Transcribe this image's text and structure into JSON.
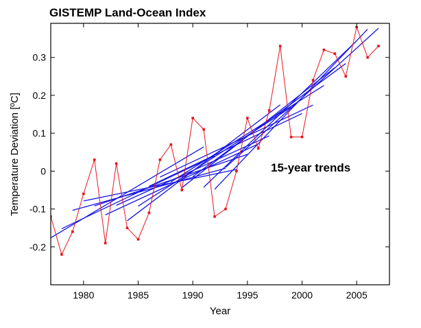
{
  "chart_data": {
    "type": "line",
    "title": "GISTEMP Land-Ocean Index",
    "xlabel": "Year",
    "ylabel": "Temperature Deviation [ºC]",
    "xlim": [
      1977,
      2008
    ],
    "ylim": [
      -0.3,
      0.39
    ],
    "xticks": [
      1980,
      1985,
      1990,
      1995,
      2000,
      2005
    ],
    "yticks": [
      -0.2,
      -0.1,
      0,
      0.1,
      0.2,
      0.3
    ],
    "grid": false,
    "annotation": "15-year trends",
    "colors": {
      "series": "#e8141c",
      "trends": "#1414e6"
    },
    "series": [
      {
        "x": [
          1977,
          1978,
          1979,
          1980,
          1981,
          1982,
          1983,
          1984,
          1985,
          1986,
          1987,
          1988,
          1989,
          1990,
          1991,
          1992,
          1993,
          1994,
          1995,
          1996,
          1997,
          1998,
          1999,
          2000,
          2001,
          2002,
          2003,
          2004,
          2005,
          2006,
          2007
        ],
        "values": [
          -0.12,
          -0.22,
          -0.16,
          -0.06,
          0.03,
          -0.19,
          0.02,
          -0.15,
          -0.18,
          -0.11,
          0.03,
          0.07,
          -0.05,
          0.14,
          0.11,
          -0.12,
          -0.1,
          0.0,
          0.14,
          0.06,
          0.16,
          0.33,
          0.09,
          0.09,
          0.24,
          0.32,
          0.31,
          0.25,
          0.38,
          0.3,
          0.33
        ]
      }
    ],
    "trend_window": 15
  }
}
